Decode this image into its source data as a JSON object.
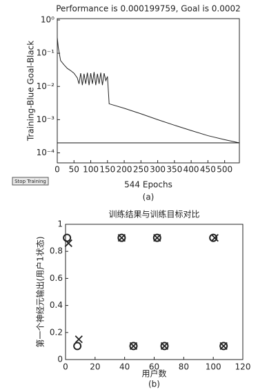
{
  "chart_data": [
    {
      "type": "line",
      "title": "Performance is 0.000199759, Goal is 0.0002",
      "y_label": "Training-Blue Goal-Black",
      "x_label": "544 Epochs",
      "caption": "(a)",
      "ylog": true,
      "xlim": [
        0,
        544
      ],
      "ylim": [
        5e-05,
        1.1
      ],
      "xticks": [
        0,
        50,
        100,
        150,
        200,
        250,
        300,
        350,
        400,
        450,
        500
      ],
      "yticks": [
        {
          "value": 1,
          "label": "10⁰"
        },
        {
          "value": 0.1,
          "label": "10⁻¹"
        },
        {
          "value": 0.01,
          "label": "10⁻²"
        },
        {
          "value": 0.001,
          "label": "10⁻³"
        },
        {
          "value": 0.0001,
          "label": "10⁻⁴"
        }
      ],
      "series": [
        {
          "color": "#222222",
          "x": [
            0,
            3,
            10,
            20,
            30,
            40,
            50,
            60,
            65,
            70,
            75,
            80,
            85,
            90,
            95,
            100,
            105,
            110,
            115,
            120,
            125,
            130,
            135,
            140,
            145,
            150,
            155,
            200,
            250,
            300,
            350,
            400,
            450,
            500,
            544
          ],
          "values": [
            0.3,
            0.15,
            0.06,
            0.045,
            0.035,
            0.03,
            0.025,
            0.018,
            0.012,
            0.025,
            0.011,
            0.024,
            0.012,
            0.026,
            0.011,
            0.025,
            0.012,
            0.027,
            0.011,
            0.024,
            0.012,
            0.026,
            0.011,
            0.025,
            0.015,
            0.02,
            0.003,
            0.0022,
            0.0015,
            0.001,
            0.00068,
            0.00047,
            0.00033,
            0.00025,
            0.0002
          ]
        },
        {
          "color": "#111111",
          "x": [
            0,
            544
          ],
          "values": [
            0.0002,
            0.0002
          ]
        }
      ]
    },
    {
      "type": "scatter",
      "title": "训练结果与训练目标对比",
      "y_label": "第一个神经元输出(用户1状态)",
      "x_label": "用户数",
      "caption": "(b)",
      "xlim": [
        0,
        120
      ],
      "ylim": [
        0,
        1
      ],
      "xticks": [
        0,
        20,
        40,
        60,
        80,
        100,
        120
      ],
      "yticks": [
        0,
        0.2,
        0.4,
        0.6,
        0.8,
        1
      ],
      "series": [
        {
          "marker": "o",
          "color": "#222222",
          "x": [
            1,
            8,
            38,
            46,
            62,
            67,
            100,
            107
          ],
          "values": [
            0.9,
            0.1,
            0.9,
            0.1,
            0.9,
            0.1,
            0.9,
            0.1
          ]
        },
        {
          "marker": "x",
          "color": "#222222",
          "x": [
            2,
            9,
            38,
            46,
            62,
            67,
            101,
            107
          ],
          "values": [
            0.86,
            0.15,
            0.9,
            0.1,
            0.9,
            0.1,
            0.9,
            0.1
          ]
        }
      ]
    }
  ],
  "button": "Stop Training"
}
